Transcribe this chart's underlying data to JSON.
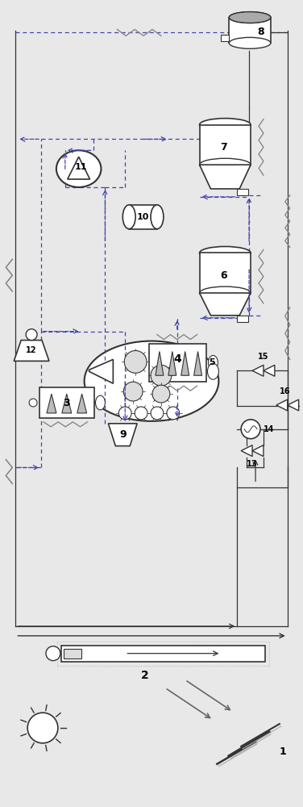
{
  "bg_color": "#e8e8e8",
  "line_color": "#333333",
  "blue_dashed": "#4444aa",
  "figsize": [
    3.76,
    10.0
  ],
  "dpi": 100
}
